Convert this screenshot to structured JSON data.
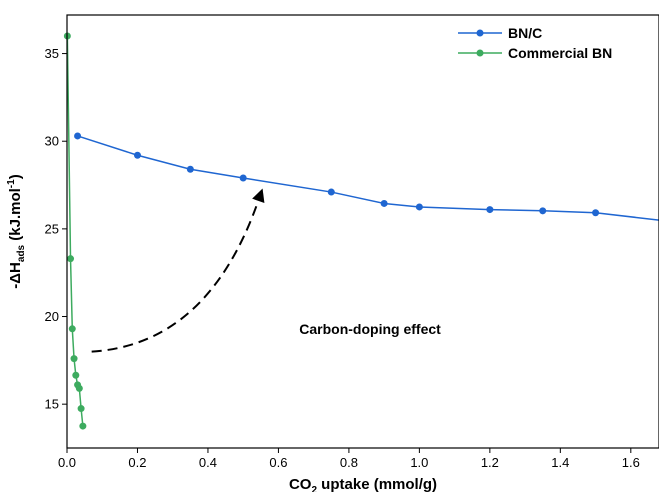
{
  "chart_data": {
    "type": "line",
    "xlabel": {
      "prefix": "CO",
      "sub": "2",
      "suffix": " uptake (mmol/g)"
    },
    "ylabel": {
      "prefix": "-ΔH",
      "sub": "ads",
      "mid": " (kJ.mol",
      "sup": "-1",
      "suffix": ")"
    },
    "xlim": [
      0,
      1.68
    ],
    "ylim": [
      12.5,
      37.2
    ],
    "xticks": [
      "0.0",
      "0.2",
      "0.4",
      "0.6",
      "0.8",
      "1.0",
      "1.2",
      "1.4",
      "1.6"
    ],
    "yticks": [
      "15",
      "20",
      "25",
      "30",
      "35"
    ],
    "grid": false,
    "legend_position": "top-right",
    "series": [
      {
        "name": "BN/C",
        "color": "#1f66d1",
        "marker_x": [
          0.03,
          0.2,
          0.35,
          0.5,
          0.75,
          0.9,
          1.0,
          1.2,
          1.35,
          1.5
        ],
        "marker_y": [
          30.3,
          29.2,
          28.4,
          27.9,
          27.1,
          26.45,
          26.25,
          26.1,
          26.03,
          25.92
        ],
        "curve_x": [
          0.03,
          0.2,
          0.35,
          0.5,
          0.75,
          0.9,
          1.0,
          1.2,
          1.35,
          1.5,
          1.68
        ],
        "curve_y": [
          30.3,
          29.2,
          28.4,
          27.9,
          27.1,
          26.45,
          26.25,
          26.1,
          26.03,
          25.92,
          25.5
        ]
      },
      {
        "name": "Commercial BN",
        "color": "#3dab5f",
        "marker_x": [
          0.001,
          0.01,
          0.015,
          0.02,
          0.025,
          0.03,
          0.035,
          0.04,
          0.045
        ],
        "marker_y": [
          36.0,
          23.3,
          19.3,
          17.6,
          16.65,
          16.1,
          15.9,
          14.75,
          13.75
        ],
        "curve_x": [
          0.001,
          0.01,
          0.015,
          0.02,
          0.025,
          0.03,
          0.035,
          0.04,
          0.045
        ],
        "curve_y": [
          36.0,
          23.3,
          19.3,
          17.6,
          16.65,
          16.1,
          15.9,
          14.75,
          13.75
        ]
      }
    ],
    "annotation": {
      "text": "Carbon-doping effect",
      "anchor_x": 0.86,
      "anchor_y": 19.3,
      "arrow_from": [
        0.07,
        18.0
      ],
      "arrow_control": [
        0.4,
        18.4
      ],
      "arrow_to": [
        0.555,
        27.3
      ]
    }
  }
}
